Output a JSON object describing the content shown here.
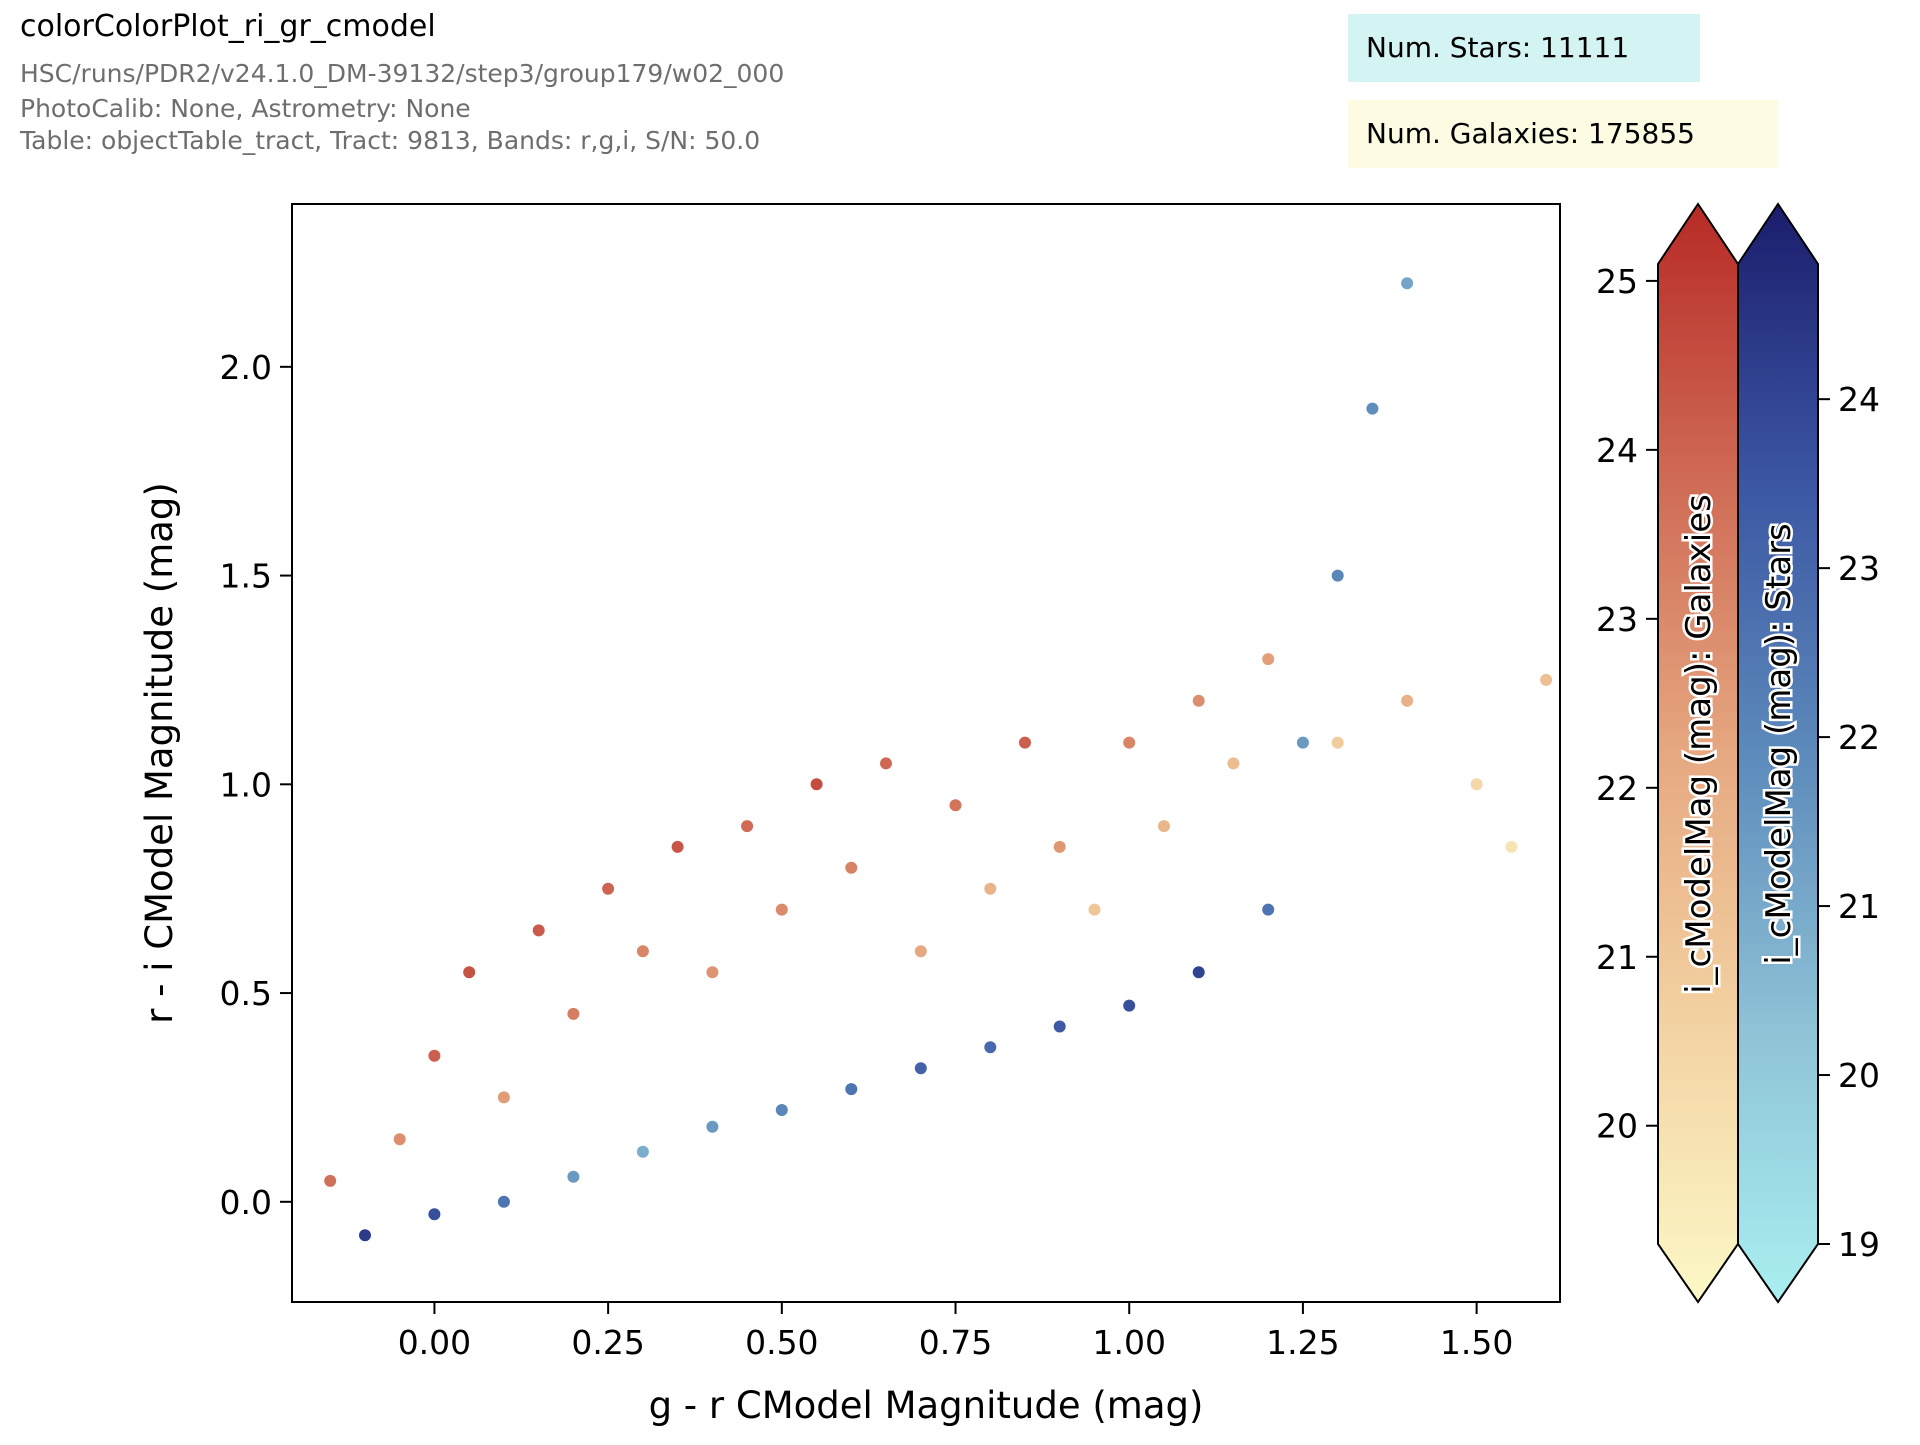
{
  "header": {
    "title": "colorColorPlot_ri_gr_cmodel",
    "subtitle_lines": [
      "HSC/runs/PDR2/v24.1.0_DM-39132/step3/group179/w02_000",
      "PhotoCalib: None, Astrometry: None",
      "Table: objectTable_tract, Tract: 9813, Bands: r,g,i, S/N: 50.0"
    ],
    "stars_box": {
      "text": "Num. Stars: 11111",
      "color": "#d4f3f3"
    },
    "galaxies_box": {
      "text": "Num. Galaxies: 175855",
      "color": "#fdfbe1"
    }
  },
  "chart_data": {
    "type": "scatter",
    "xlabel": "g - r CModel Magnitude (mag)",
    "ylabel": "r - i CModel Magnitude (mag)",
    "xlim": [
      -0.205,
      1.62
    ],
    "ylim": [
      -0.24,
      2.39
    ],
    "x_ticks": [
      0.0,
      0.25,
      0.5,
      0.75,
      1.0,
      1.25,
      1.5
    ],
    "x_tick_labels": [
      "0.00",
      "0.25",
      "0.50",
      "0.75",
      "1.00",
      "1.25",
      "1.50"
    ],
    "y_ticks": [
      0.0,
      0.5,
      1.0,
      1.5,
      2.0
    ],
    "y_tick_labels": [
      "0.0",
      "0.5",
      "1.0",
      "1.5",
      "2.0"
    ],
    "series": [
      {
        "name": "Galaxies",
        "count": 175855,
        "colorbar_label": "i_cModelMag (mag): Galaxies",
        "colormap": [
          "#fdf8c7",
          "#f3d3a3",
          "#e6a880",
          "#cf6a55",
          "#b72a26"
        ],
        "color_range": [
          19.3,
          25.1
        ],
        "colorbar_ticks": [
          20,
          21,
          22,
          23,
          24,
          25
        ],
        "colorbar_tick_labels": [
          "20",
          "21",
          "22",
          "23",
          "24",
          "25"
        ],
        "points": [
          [
            -0.15,
            0.05,
            23.5
          ],
          [
            -0.05,
            0.15,
            22.8
          ],
          [
            0.0,
            0.35,
            23.9
          ],
          [
            0.05,
            0.55,
            24.2
          ],
          [
            0.1,
            0.25,
            22.5
          ],
          [
            0.15,
            0.65,
            24.0
          ],
          [
            0.2,
            0.45,
            23.2
          ],
          [
            0.25,
            0.75,
            23.8
          ],
          [
            0.3,
            0.6,
            23.0
          ],
          [
            0.35,
            0.85,
            24.1
          ],
          [
            0.4,
            0.55,
            22.7
          ],
          [
            0.45,
            0.9,
            23.6
          ],
          [
            0.5,
            0.7,
            22.9
          ],
          [
            0.55,
            1.0,
            24.3
          ],
          [
            0.6,
            0.8,
            23.1
          ],
          [
            0.65,
            1.05,
            23.7
          ],
          [
            0.7,
            0.6,
            22.2
          ],
          [
            0.75,
            0.95,
            23.4
          ],
          [
            0.8,
            0.75,
            21.8
          ],
          [
            0.85,
            1.1,
            23.9
          ],
          [
            0.9,
            0.85,
            22.6
          ],
          [
            0.95,
            0.7,
            21.2
          ],
          [
            1.0,
            1.1,
            23.0
          ],
          [
            1.05,
            0.9,
            21.7
          ],
          [
            1.1,
            1.2,
            22.8
          ],
          [
            1.15,
            1.05,
            21.5
          ],
          [
            1.2,
            1.3,
            22.4
          ],
          [
            1.3,
            1.1,
            21.0
          ],
          [
            1.4,
            1.2,
            21.9
          ],
          [
            1.5,
            1.0,
            20.6
          ],
          [
            1.55,
            0.85,
            20.1
          ],
          [
            1.6,
            1.25,
            21.4
          ]
        ]
      },
      {
        "name": "Stars",
        "count": 11111,
        "colorbar_label": "i_cModelMag (mag): Stars",
        "colormap": [
          "#aaeff0",
          "#8ec2d6",
          "#5c8abb",
          "#3b55a2",
          "#1b1d6c"
        ],
        "color_range": [
          19.0,
          24.8
        ],
        "colorbar_ticks": [
          19,
          20,
          21,
          22,
          23,
          24
        ],
        "colorbar_tick_labels": [
          "19",
          "20",
          "21",
          "22",
          "23",
          "24"
        ],
        "points": [
          [
            -0.1,
            -0.08,
            24.0
          ],
          [
            0.0,
            -0.03,
            23.5
          ],
          [
            0.1,
            0.0,
            22.5
          ],
          [
            0.2,
            0.06,
            21.5
          ],
          [
            0.3,
            0.12,
            21.0
          ],
          [
            0.4,
            0.18,
            21.5
          ],
          [
            0.5,
            0.22,
            22.0
          ],
          [
            0.6,
            0.27,
            22.5
          ],
          [
            0.7,
            0.32,
            23.0
          ],
          [
            0.8,
            0.37,
            22.8
          ],
          [
            0.9,
            0.42,
            23.2
          ],
          [
            1.0,
            0.47,
            23.5
          ],
          [
            1.1,
            0.55,
            23.8
          ],
          [
            1.2,
            0.7,
            22.5
          ],
          [
            1.25,
            1.1,
            21.5
          ],
          [
            1.3,
            1.5,
            22.0
          ],
          [
            1.35,
            1.9,
            21.8
          ],
          [
            1.4,
            2.2,
            21.2
          ]
        ]
      }
    ]
  }
}
